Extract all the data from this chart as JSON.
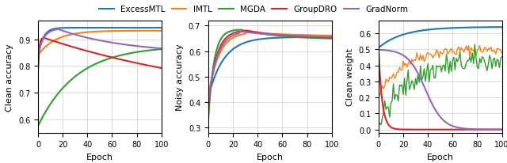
{
  "legend_labels": [
    "ExcessMTL",
    "IMTL",
    "MGDA",
    "GroupDRO",
    "GradNorm"
  ],
  "colors": {
    "ExcessMTL": "#1f77b4",
    "IMTL": "#ff7f0e",
    "MGDA": "#2ca02c",
    "GroupDRO": "#d62728",
    "GradNorm": "#9467bd"
  },
  "plot1": {
    "xlabel": "Epoch",
    "ylabel": "Clean accuracy",
    "ylim": [
      0.55,
      0.97
    ],
    "yticks": [
      0.6,
      0.7,
      0.8,
      0.9
    ],
    "xlim": [
      0,
      100
    ]
  },
  "plot2": {
    "xlabel": "Epoch",
    "ylabel": "Noisy accuracy",
    "ylim": [
      0.28,
      0.72
    ],
    "yticks": [
      0.3,
      0.4,
      0.5,
      0.6,
      0.7
    ],
    "xlim": [
      0,
      100
    ]
  },
  "plot3": {
    "xlabel": "Epoch",
    "ylabel": "Clean weight",
    "ylim": [
      -0.02,
      0.68
    ],
    "yticks": [
      0.0,
      0.1,
      0.2,
      0.3,
      0.4,
      0.5,
      0.6
    ],
    "xlim": [
      0,
      100
    ]
  },
  "figsize": [
    6.4,
    2.07
  ],
  "dpi": 100
}
